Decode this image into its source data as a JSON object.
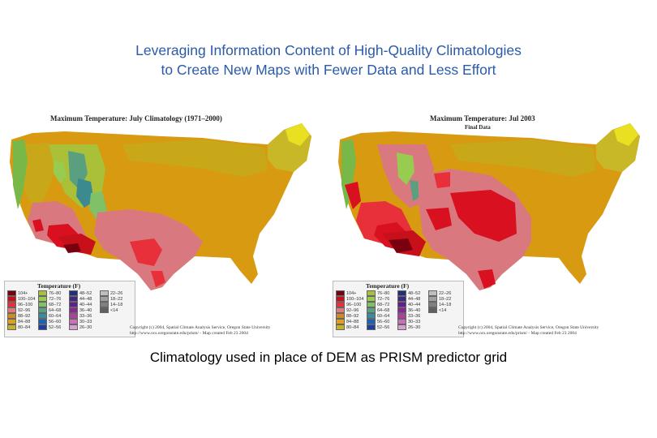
{
  "slide": {
    "title_line1": "Leveraging Information Content of High-Quality Climatologies",
    "title_line2": "to Create New Maps with Fewer Data and Less Effort",
    "caption": "Climatology used in place of DEM as PRISM predictor grid"
  },
  "maps": [
    {
      "title": "Maximum Temperature:  July Climatology (1971–2000)",
      "subtitle": "",
      "legend_title": "Temperature (F)",
      "credit_line1": "Copyright (c) 2004, Spatial Climate Analysis Service, Oregon State University",
      "credit_line2": "http://www.ocs.oregonstate.edu/prism/   -   Map created Feb 23 2004"
    },
    {
      "title": "Maximum Temperature:  Jul 2003",
      "subtitle": "Final Data",
      "legend_title": "Temperature (F)",
      "credit_line1": "Copyright (c) 2004, Spatial Climate Analysis Service, Oregon State University",
      "credit_line2": "http://www.ocs.oregonstate.edu/prism/   -   Map created Feb 23 2004"
    }
  ],
  "legend": [
    {
      "label": "104+",
      "color": "#7a0010"
    },
    {
      "label": "100–104",
      "color": "#c8101a"
    },
    {
      "label": "96–100",
      "color": "#e8303a"
    },
    {
      "label": "92–96",
      "color": "#de7a80"
    },
    {
      "label": "88–92",
      "color": "#d08a20"
    },
    {
      "label": "84–88",
      "color": "#dca21c"
    },
    {
      "label": "80–84",
      "color": "#c8b028"
    },
    {
      "label": "76–80",
      "color": "#aac038"
    },
    {
      "label": "72–76",
      "color": "#98cc50"
    },
    {
      "label": "68–72",
      "color": "#80c068"
    },
    {
      "label": "64–68",
      "color": "#5aa080"
    },
    {
      "label": "60–64",
      "color": "#3a8aa0"
    },
    {
      "label": "56–60",
      "color": "#2060b0"
    },
    {
      "label": "52–56",
      "color": "#1840a0"
    },
    {
      "label": "48–52",
      "color": "#203080"
    },
    {
      "label": "44–48",
      "color": "#402880"
    },
    {
      "label": "40–44",
      "color": "#602090"
    },
    {
      "label": "36–40",
      "color": "#8a2890"
    },
    {
      "label": "33–36",
      "color": "#b040a0"
    },
    {
      "label": "30–33",
      "color": "#c870b8"
    },
    {
      "label": "26–30",
      "color": "#d8a0d0"
    },
    {
      "label": "22–26",
      "color": "#bfbfbf"
    },
    {
      "label": "18–22",
      "color": "#a0a0a0"
    },
    {
      "label": "14–18",
      "color": "#808080"
    },
    {
      "label": "<14",
      "color": "#606060"
    }
  ],
  "colors": {
    "title_blue": "#2b5aa8",
    "hot_dark": "#7a0010",
    "hot_red": "#d81020",
    "pink": "#da7880",
    "orange": "#d89a10",
    "gold": "#c8a818",
    "yellow": "#e8e020",
    "green": "#78b848",
    "teal": "#3a8a90"
  }
}
